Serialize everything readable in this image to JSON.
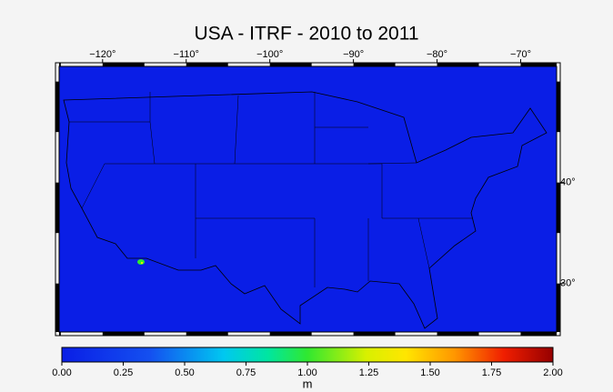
{
  "title": "USA - ITRF - 2010 to 2011",
  "map": {
    "lonlim": [
      -125.2,
      -65.7
    ],
    "latlim": [
      25.2,
      51.5
    ],
    "lonticks": [
      {
        "value": -120,
        "label": "−120°"
      },
      {
        "value": -110,
        "label": "−110°"
      },
      {
        "value": -100,
        "label": "−100°"
      },
      {
        "value": -90,
        "label": "−90°"
      },
      {
        "value": -80,
        "label": "−80°"
      },
      {
        "value": -70,
        "label": "−70°"
      }
    ],
    "latticks": [
      {
        "value": 30,
        "label": "30°"
      },
      {
        "value": 40,
        "label": "40°"
      }
    ]
  },
  "colorbar": {
    "range": [
      0,
      2
    ],
    "ticks": [
      {
        "value": 0,
        "label": "0.00"
      },
      {
        "value": 0.25,
        "label": "0.25"
      },
      {
        "value": 0.5,
        "label": "0.50"
      },
      {
        "value": 0.75,
        "label": "0.75"
      },
      {
        "value": 1,
        "label": "1.00"
      },
      {
        "value": 1.25,
        "label": "1.25"
      },
      {
        "value": 1.5,
        "label": "1.50"
      },
      {
        "value": 1.75,
        "label": "1.75"
      },
      {
        "value": 2,
        "label": "2.00"
      }
    ],
    "label": "m"
  }
}
